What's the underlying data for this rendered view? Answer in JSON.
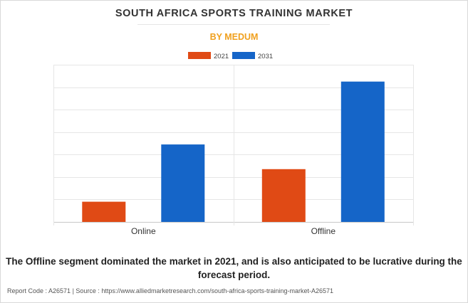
{
  "header": {
    "title": "SOUTH AFRICA SPORTS TRAINING MARKET",
    "subtitle": "BY MEDUM"
  },
  "caption": "The Offline segment dominated the market in 2021, and is also anticipated to be lucrative during the forecast period.",
  "footer": {
    "text": "Report Code : A26571  |  Source : https://www.alliedmarketresearch.com/south-africa-sports-training-market-A26571"
  },
  "chart_data": {
    "type": "bar",
    "title": "",
    "xlabel": "",
    "ylabel": "",
    "categories": [
      "Online",
      "Offline"
    ],
    "series": [
      {
        "name": "2021",
        "color": "#e04a15",
        "values": [
          0.9,
          2.35
        ]
      },
      {
        "name": "2031",
        "color": "#1565c8",
        "values": [
          3.45,
          6.25
        ]
      }
    ],
    "ylim": [
      0,
      7
    ],
    "y_gridlines": [
      0,
      1,
      2,
      3,
      4,
      5,
      6,
      7
    ],
    "y_tick_labels_shown": false,
    "legend_position": "top-center",
    "grid": true
  }
}
